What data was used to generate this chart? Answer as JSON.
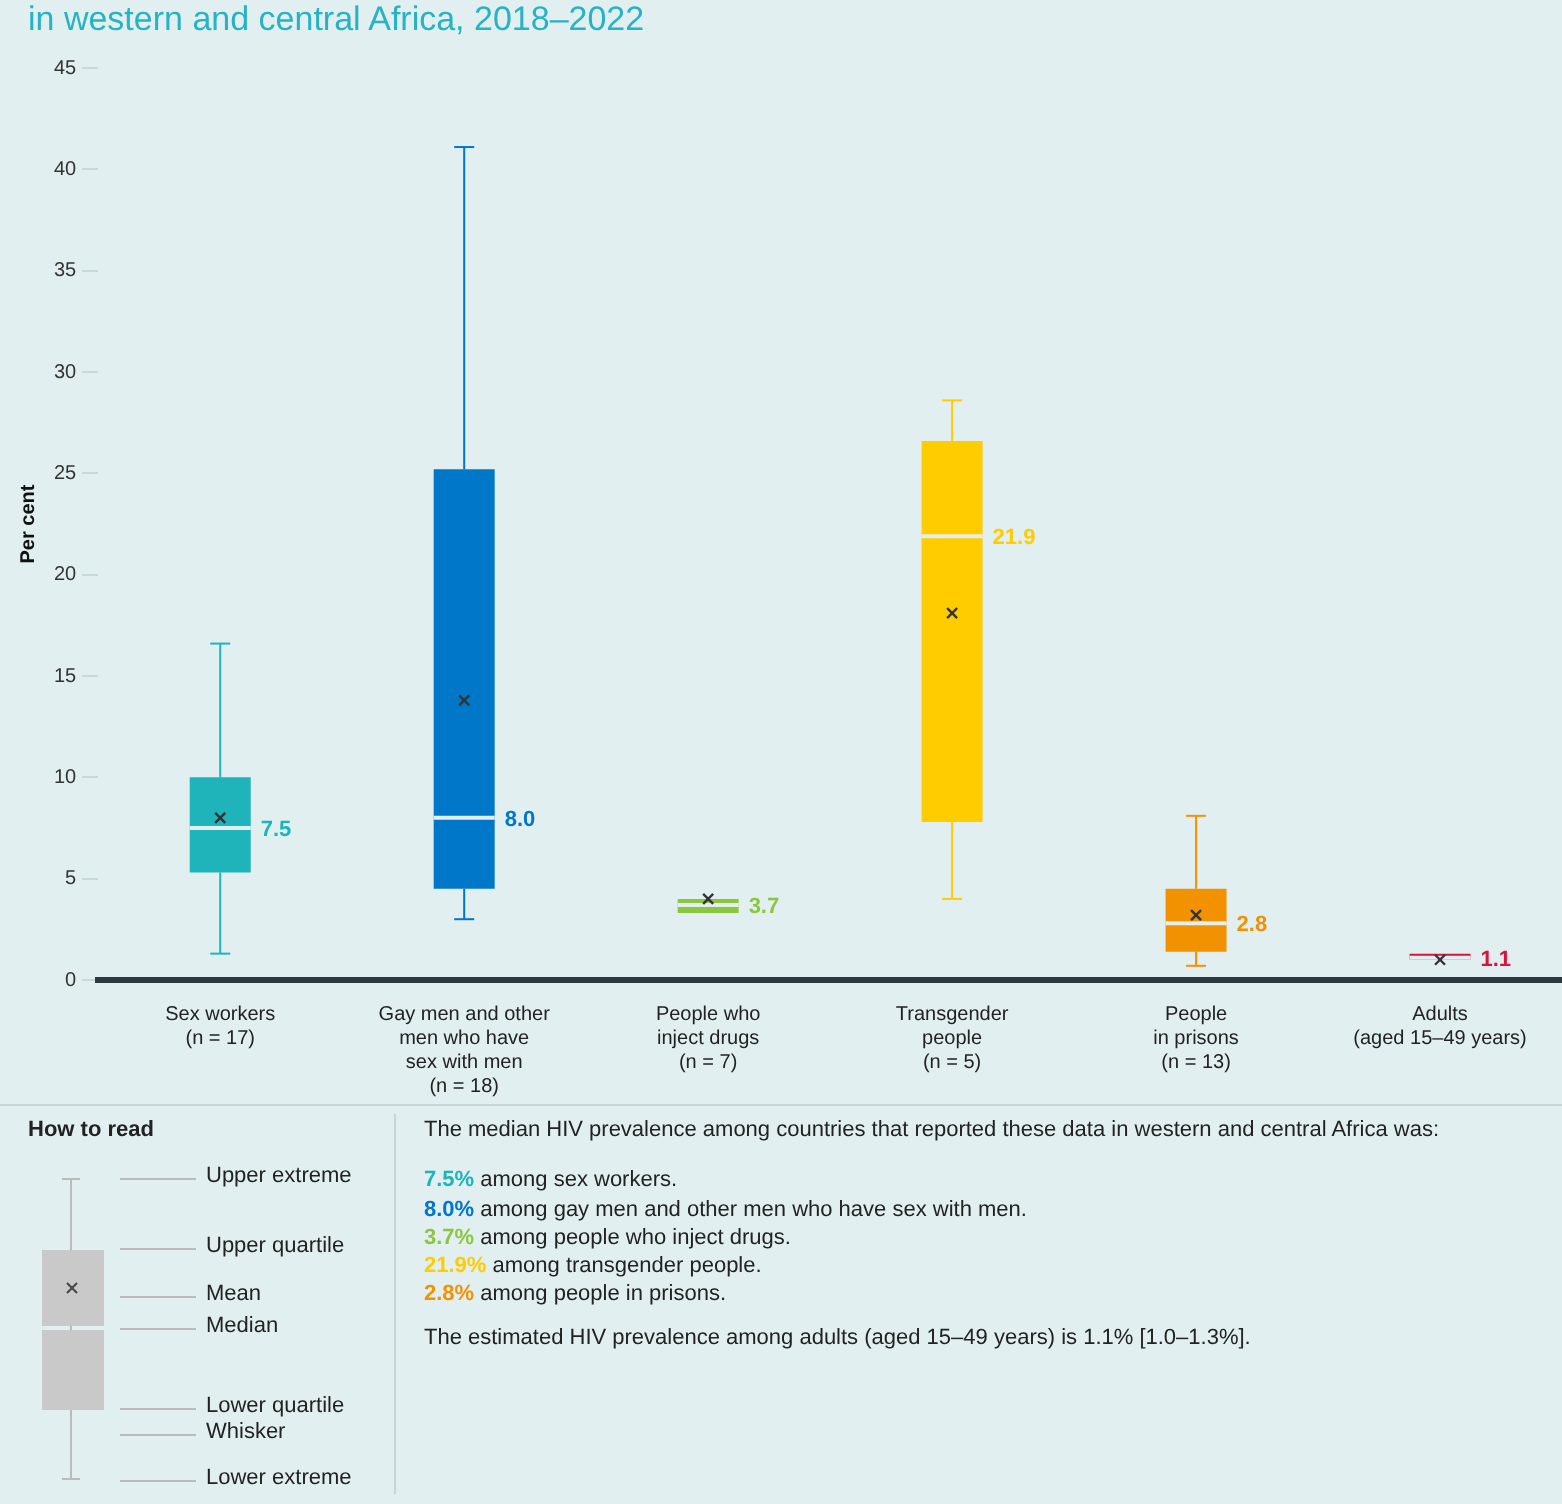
{
  "chart_data": {
    "type": "box",
    "title": "in western and central Africa, 2018–2022",
    "ylabel": "Per cent",
    "categories": [
      "Sex workers\n(n = 17)",
      "Gay men and other\nmen who have\nsex with men\n(n = 18)",
      "People who\ninject drugs\n(n = 7)",
      "Transgender\npeople\n(n = 5)",
      "People\nin prisons\n(n = 13)",
      "Adults\n(aged 15–49 years)"
    ],
    "colors": [
      "#1fb4b9",
      "#0077c8",
      "#8cc63f",
      "#ffcc00",
      "#f39200",
      "#d7143c"
    ],
    "boxes": [
      {
        "low": 1.3,
        "q1": 5.3,
        "median": 7.5,
        "q3": 10.0,
        "high": 16.6,
        "mean": 8.0
      },
      {
        "low": 3.0,
        "q1": 4.5,
        "median": 8.0,
        "q3": 25.2,
        "high": 41.1,
        "mean": 13.8
      },
      {
        "low": 3.3,
        "q1": 3.3,
        "median": 3.7,
        "q3": 4.0,
        "high": 4.0,
        "mean": 4.0
      },
      {
        "low": 4.0,
        "q1": 7.8,
        "median": 21.9,
        "q3": 26.6,
        "high": 28.6,
        "mean": 18.1
      },
      {
        "low": 0.7,
        "q1": 1.4,
        "median": 2.8,
        "q3": 4.5,
        "high": 8.1,
        "mean": 3.2
      },
      {
        "low": 1.0,
        "q1": 1.0,
        "median": 1.1,
        "q3": 1.3,
        "high": 1.3,
        "mean": 1.0
      }
    ],
    "value_labels": [
      "7.5",
      "8.0",
      "3.7",
      "21.9",
      "2.8",
      "1.1"
    ],
    "ylim": [
      0,
      45
    ],
    "yticks": [
      0,
      5,
      10,
      15,
      20,
      25,
      30,
      35,
      40,
      45
    ],
    "annotations": [
      "How to read",
      "Upper extreme",
      "Upper quartile",
      "Mean",
      "Median",
      "Lower quartile",
      "Whisker",
      "Lower extreme",
      "The median HIV prevalence among countries that reported these data in western and central Africa was:",
      "7.5% among sex workers.",
      "8.0% among gay men and other men who have sex with men.",
      "3.7% among people who inject drugs.",
      "21.9% among transgender people.",
      "2.8% among people in prisons.",
      "The estimated HIV prevalence among adults (aged 15–49 years) is 1.1% [1.0–1.3%]."
    ]
  }
}
